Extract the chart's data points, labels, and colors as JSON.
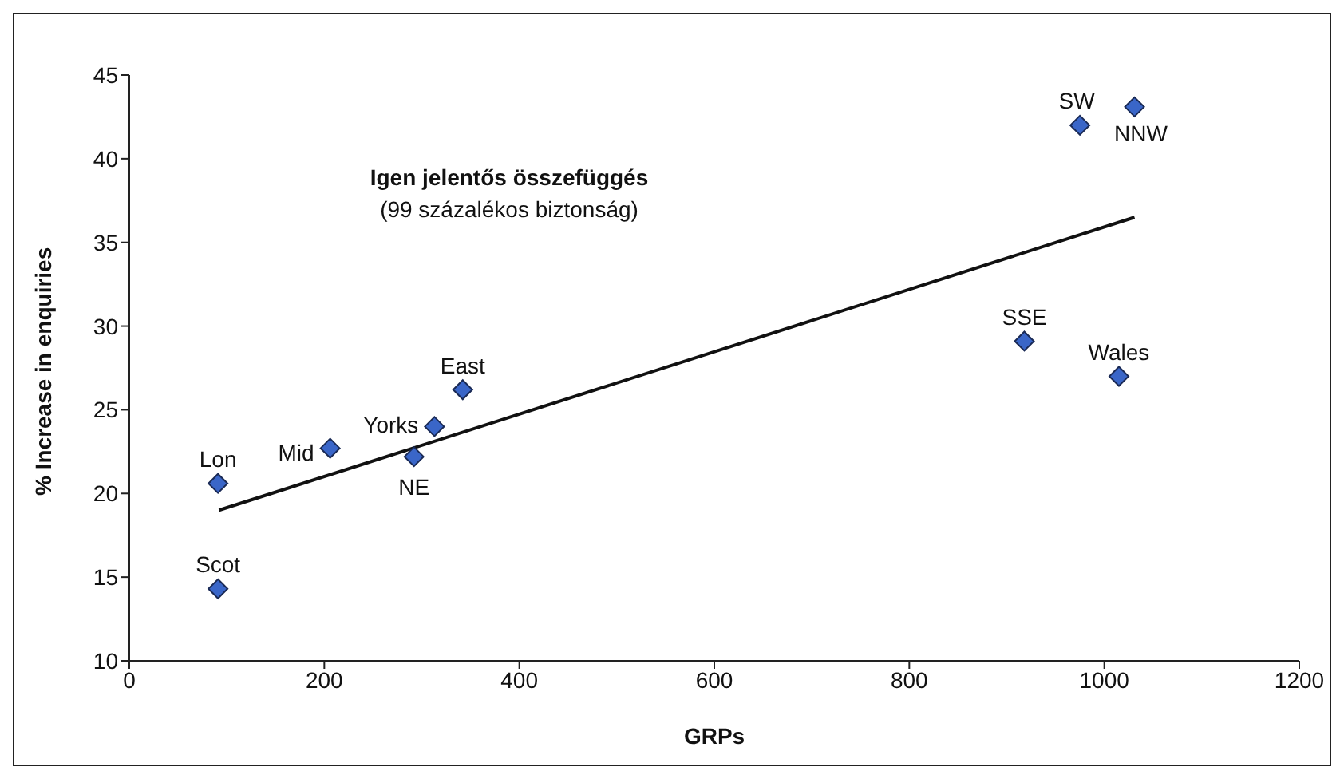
{
  "chart_data": {
    "type": "scatter",
    "xlabel": "GRPs",
    "ylabel": "% Increase in enquiries",
    "xlim": [
      0,
      1200
    ],
    "xticks": [
      0,
      200,
      400,
      600,
      800,
      1000,
      1200
    ],
    "ylim": [
      10,
      45
    ],
    "yticks": [
      10,
      15,
      20,
      25,
      30,
      35,
      40,
      45
    ],
    "grid": false,
    "legend": false,
    "marker": "diamond",
    "series": [
      {
        "color": "#3a66c8",
        "x": [
          91,
          91,
          206,
          292,
          313,
          342,
          918,
          1015,
          975,
          1031
        ],
        "values": [
          20.6,
          14.3,
          22.7,
          22.2,
          24.0,
          26.2,
          29.1,
          27.0,
          42.0,
          43.1
        ]
      },
      {
        "type": "line",
        "color": "#111111",
        "marker": "none",
        "x": [
          92,
          1031
        ],
        "values": [
          19.0,
          36.5
        ]
      }
    ],
    "annotations": [
      {
        "text": "Lon",
        "x": 91,
        "y": 20.6
      },
      {
        "text": "Scot",
        "x": 91,
        "y": 14.3
      },
      {
        "text": "Mid",
        "x": 206,
        "y": 22.7
      },
      {
        "text": "NE",
        "x": 292,
        "y": 22.2
      },
      {
        "text": "Yorks",
        "x": 313,
        "y": 24.0
      },
      {
        "text": "East",
        "x": 342,
        "y": 26.2
      },
      {
        "text": "SSE",
        "x": 918,
        "y": 29.1
      },
      {
        "text": "Wales",
        "x": 1015,
        "y": 27.0
      },
      {
        "text": "SW",
        "x": 975,
        "y": 42.0
      },
      {
        "text": "NNW",
        "x": 1031,
        "y": 43.1
      },
      "Igen jelentős összefüggés",
      "(99 százalékos biztonság)"
    ]
  }
}
